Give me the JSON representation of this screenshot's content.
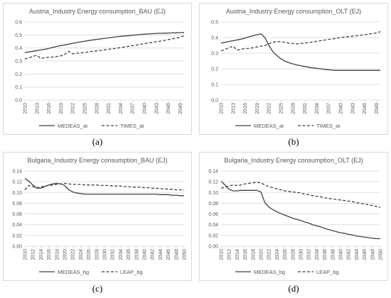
{
  "colors": {
    "series": "#404040",
    "grid": "#d9d9d9",
    "text": "#595959"
  },
  "captions": [
    "(a)",
    "(b)",
    "(c)",
    "(d)"
  ],
  "chart_data": [
    {
      "type": "line",
      "title": "Austria_Industry Energy consumption_BAU (EJ)",
      "xlabels": [
        "2010",
        "2013",
        "2016",
        "2019",
        "2022",
        "2025",
        "2028",
        "2031",
        "2034",
        "2037",
        "2040",
        "2043",
        "2046",
        "2049"
      ],
      "x": [
        2010,
        2011,
        2012,
        2013,
        2014,
        2015,
        2016,
        2017,
        2018,
        2019,
        2020,
        2021,
        2022,
        2023,
        2024,
        2025,
        2026,
        2027,
        2028,
        2029,
        2030,
        2031,
        2032,
        2033,
        2034,
        2035,
        2036,
        2037,
        2038,
        2039,
        2040,
        2041,
        2042,
        2043,
        2044,
        2045,
        2046,
        2047,
        2048,
        2049,
        2050
      ],
      "ylim": [
        0,
        0.6
      ],
      "ystep": 0.1,
      "ydecimals": 1,
      "grid": true,
      "legend": "bottom",
      "series": [
        {
          "name": "MEDEAS_at",
          "dash": "solid",
          "values": [
            0.365,
            0.37,
            0.375,
            0.38,
            0.385,
            0.39,
            0.397,
            0.405,
            0.412,
            0.418,
            0.424,
            0.43,
            0.436,
            0.442,
            0.447,
            0.452,
            0.457,
            0.462,
            0.466,
            0.47,
            0.474,
            0.478,
            0.482,
            0.486,
            0.489,
            0.492,
            0.495,
            0.498,
            0.501,
            0.504,
            0.506,
            0.508,
            0.51,
            0.512,
            0.513,
            0.514,
            0.515,
            0.516,
            0.517,
            0.518,
            0.52
          ]
        },
        {
          "name": "TIMES_at",
          "dash": "dashed",
          "values": [
            0.315,
            0.325,
            0.335,
            0.345,
            0.32,
            0.325,
            0.33,
            0.33,
            0.335,
            0.34,
            0.35,
            0.375,
            0.355,
            0.36,
            0.362,
            0.365,
            0.37,
            0.375,
            0.378,
            0.382,
            0.386,
            0.39,
            0.394,
            0.398,
            0.403,
            0.408,
            0.413,
            0.418,
            0.423,
            0.428,
            0.433,
            0.438,
            0.443,
            0.448,
            0.453,
            0.458,
            0.464,
            0.47,
            0.476,
            0.482,
            0.495
          ]
        }
      ]
    },
    {
      "type": "line",
      "title": "Austria_Industry Energy consumption_OLT (EJ)",
      "xlabels": [
        "2010",
        "2013",
        "2016",
        "2019",
        "2022",
        "2025",
        "2028",
        "2031",
        "2034",
        "2037",
        "2040",
        "2043",
        "2046",
        "2049"
      ],
      "x": [
        2010,
        2011,
        2012,
        2013,
        2014,
        2015,
        2016,
        2017,
        2018,
        2019,
        2020,
        2021,
        2022,
        2023,
        2024,
        2025,
        2026,
        2027,
        2028,
        2029,
        2030,
        2031,
        2032,
        2033,
        2034,
        2035,
        2036,
        2037,
        2038,
        2039,
        2040,
        2041,
        2042,
        2043,
        2044,
        2045,
        2046,
        2047,
        2048,
        2049,
        2050
      ],
      "ylim": [
        0,
        0.5
      ],
      "ystep": 0.1,
      "ydecimals": 1,
      "grid": true,
      "legend": "bottom",
      "series": [
        {
          "name": "MEDEAS_at",
          "dash": "solid",
          "values": [
            0.365,
            0.37,
            0.375,
            0.38,
            0.385,
            0.39,
            0.397,
            0.405,
            0.412,
            0.418,
            0.424,
            0.4,
            0.35,
            0.31,
            0.285,
            0.265,
            0.25,
            0.24,
            0.232,
            0.225,
            0.22,
            0.215,
            0.21,
            0.206,
            0.203,
            0.2,
            0.197,
            0.194,
            0.192,
            0.19,
            0.19,
            0.19,
            0.19,
            0.19,
            0.19,
            0.19,
            0.19,
            0.19,
            0.19,
            0.19,
            0.19
          ]
        },
        {
          "name": "TIMES_at",
          "dash": "dashed",
          "values": [
            0.315,
            0.325,
            0.335,
            0.345,
            0.32,
            0.325,
            0.33,
            0.33,
            0.335,
            0.34,
            0.345,
            0.35,
            0.36,
            0.37,
            0.375,
            0.373,
            0.37,
            0.365,
            0.362,
            0.36,
            0.362,
            0.365,
            0.368,
            0.372,
            0.376,
            0.38,
            0.384,
            0.388,
            0.392,
            0.396,
            0.4,
            0.403,
            0.406,
            0.409,
            0.412,
            0.415,
            0.418,
            0.422,
            0.426,
            0.43,
            0.438
          ]
        }
      ]
    },
    {
      "type": "line",
      "title": "Bulgaria_Industry Energy consumption_BAU (EJ)",
      "xlabels": [
        "2010",
        "2012",
        "2014",
        "2016",
        "2018",
        "2020",
        "2022",
        "2024",
        "2026",
        "2028",
        "2030",
        "2032",
        "2034",
        "2036",
        "2038",
        "2040",
        "2042",
        "2044",
        "2046",
        "2048",
        "2050"
      ],
      "x": [
        2010,
        2011,
        2012,
        2013,
        2014,
        2015,
        2016,
        2017,
        2018,
        2019,
        2020,
        2021,
        2022,
        2023,
        2024,
        2025,
        2026,
        2027,
        2028,
        2029,
        2030,
        2031,
        2032,
        2033,
        2034,
        2035,
        2036,
        2037,
        2038,
        2039,
        2040,
        2041,
        2042,
        2043,
        2044,
        2045,
        2046,
        2047,
        2048,
        2049,
        2050
      ],
      "ylim": [
        0,
        0.14
      ],
      "ystep": 0.02,
      "ydecimals": 2,
      "grid": true,
      "legend": "bottom",
      "series": [
        {
          "name": "MEDEAS_bg",
          "dash": "solid",
          "values": [
            0.126,
            0.121,
            0.114,
            0.108,
            0.108,
            0.111,
            0.114,
            0.116,
            0.117,
            0.116,
            0.113,
            0.105,
            0.101,
            0.099,
            0.098,
            0.097,
            0.097,
            0.097,
            0.097,
            0.097,
            0.097,
            0.097,
            0.097,
            0.097,
            0.097,
            0.097,
            0.097,
            0.097,
            0.097,
            0.097,
            0.097,
            0.097,
            0.097,
            0.097,
            0.096,
            0.096,
            0.096,
            0.095,
            0.095,
            0.094,
            0.094
          ]
        },
        {
          "name": "LEAP_bg",
          "dash": "dashed",
          "values": [
            0.105,
            0.113,
            0.111,
            0.109,
            0.11,
            0.112,
            0.113,
            0.114,
            0.115,
            0.116,
            0.117,
            0.116,
            0.115,
            0.115,
            0.115,
            0.114,
            0.114,
            0.114,
            0.114,
            0.113,
            0.113,
            0.113,
            0.112,
            0.112,
            0.112,
            0.111,
            0.111,
            0.11,
            0.11,
            0.11,
            0.109,
            0.109,
            0.108,
            0.108,
            0.107,
            0.107,
            0.106,
            0.106,
            0.105,
            0.105,
            0.104
          ]
        }
      ]
    },
    {
      "type": "line",
      "title": "Bulgaria_Industry Energy consumption_OLT (EJ)",
      "xlabels": [
        "2010",
        "2012",
        "2014",
        "2016",
        "2018",
        "2020",
        "2022",
        "2024",
        "2026",
        "2028",
        "2030",
        "2032",
        "2034",
        "2036",
        "2038",
        "2040",
        "2042",
        "2044",
        "2046",
        "2048",
        "2050"
      ],
      "x": [
        2010,
        2011,
        2012,
        2013,
        2014,
        2015,
        2016,
        2017,
        2018,
        2019,
        2020,
        2021,
        2022,
        2023,
        2024,
        2025,
        2026,
        2027,
        2028,
        2029,
        2030,
        2031,
        2032,
        2033,
        2034,
        2035,
        2036,
        2037,
        2038,
        2039,
        2040,
        2041,
        2042,
        2043,
        2044,
        2045,
        2046,
        2047,
        2048,
        2049,
        2050
      ],
      "ylim": [
        0,
        0.14
      ],
      "ystep": 0.02,
      "ydecimals": 2,
      "grid": true,
      "legend": "bottom",
      "series": [
        {
          "name": "MEDEAS_bg",
          "dash": "solid",
          "values": [
            0.121,
            0.114,
            0.106,
            0.103,
            0.103,
            0.104,
            0.104,
            0.104,
            0.104,
            0.104,
            0.101,
            0.081,
            0.073,
            0.068,
            0.064,
            0.061,
            0.058,
            0.055,
            0.052,
            0.05,
            0.048,
            0.045,
            0.043,
            0.04,
            0.038,
            0.036,
            0.033,
            0.031,
            0.029,
            0.027,
            0.025,
            0.024,
            0.022,
            0.021,
            0.019,
            0.018,
            0.017,
            0.016,
            0.015,
            0.014,
            0.014
          ]
        },
        {
          "name": "LEAP_bg",
          "dash": "dashed",
          "values": [
            0.108,
            0.11,
            0.112,
            0.114,
            0.113,
            0.114,
            0.116,
            0.117,
            0.118,
            0.119,
            0.118,
            0.114,
            0.111,
            0.109,
            0.107,
            0.105,
            0.103,
            0.102,
            0.101,
            0.1,
            0.099,
            0.097,
            0.096,
            0.094,
            0.093,
            0.092,
            0.09,
            0.089,
            0.088,
            0.087,
            0.086,
            0.085,
            0.084,
            0.083,
            0.081,
            0.08,
            0.079,
            0.077,
            0.076,
            0.074,
            0.072
          ]
        }
      ]
    }
  ]
}
